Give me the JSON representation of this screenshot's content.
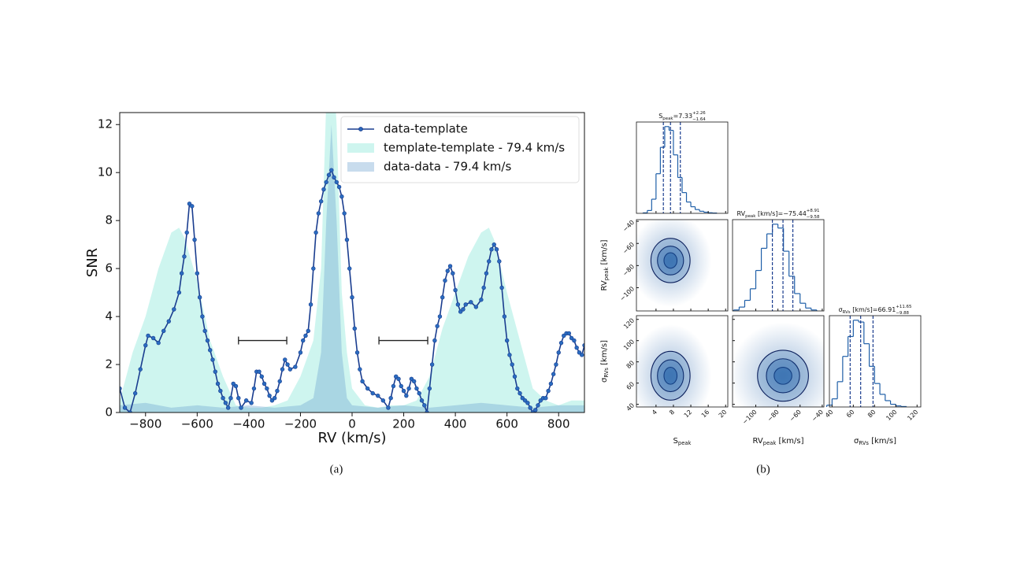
{
  "chart_data": [
    {
      "type": "line",
      "caption": "(a)",
      "xlabel": "RV (km/s)",
      "ylabel": "SNR",
      "xlim": [
        -900,
        900
      ],
      "ylim": [
        0,
        12.5
      ],
      "xticks": [
        {
          "value": -800,
          "label": "−800"
        },
        {
          "value": -600,
          "label": "−600"
        },
        {
          "value": -400,
          "label": "−400"
        },
        {
          "value": -200,
          "label": "−200"
        },
        0,
        200,
        400,
        600,
        800
      ],
      "yticks": [
        0,
        2,
        4,
        6,
        8,
        10,
        12
      ],
      "legend": "upper right",
      "x": [
        -900,
        -880,
        -860,
        -840,
        -820,
        -800,
        -790,
        -770,
        -750,
        -730,
        -710,
        -690,
        -670,
        -660,
        -650,
        -640,
        -630,
        -620,
        -610,
        -600,
        -590,
        -580,
        -570,
        -560,
        -550,
        -540,
        -530,
        -520,
        -510,
        -500,
        -490,
        -480,
        -470,
        -460,
        -450,
        -440,
        -430,
        -410,
        -390,
        -380,
        -370,
        -360,
        -350,
        -340,
        -330,
        -320,
        -310,
        -300,
        -290,
        -280,
        -270,
        -260,
        -250,
        -240,
        -220,
        -200,
        -190,
        -180,
        -170,
        -160,
        -150,
        -140,
        -130,
        -120,
        -110,
        -100,
        -90,
        -80,
        -70,
        -60,
        -50,
        -40,
        -30,
        -20,
        -10,
        0,
        10,
        20,
        30,
        40,
        60,
        80,
        100,
        120,
        140,
        150,
        160,
        170,
        180,
        190,
        200,
        210,
        220,
        230,
        240,
        250,
        260,
        270,
        280,
        290,
        300,
        310,
        320,
        330,
        340,
        350,
        360,
        370,
        380,
        390,
        400,
        410,
        420,
        430,
        440,
        460,
        480,
        500,
        510,
        520,
        530,
        540,
        550,
        560,
        570,
        580,
        590,
        600,
        610,
        620,
        630,
        640,
        650,
        660,
        670,
        680,
        690,
        700,
        710,
        720,
        730,
        740,
        750,
        760,
        770,
        780,
        790,
        800,
        810,
        820,
        830,
        840,
        850,
        860,
        870,
        880,
        890,
        900
      ],
      "series": [
        {
          "name": "data-template",
          "color": "#1a3d8f",
          "values": [
            1.0,
            0.2,
            0.0,
            0.8,
            1.8,
            2.8,
            3.2,
            3.1,
            2.9,
            3.4,
            3.8,
            4.3,
            5.0,
            5.8,
            6.5,
            7.5,
            8.7,
            8.6,
            7.2,
            5.8,
            4.8,
            4.0,
            3.4,
            3.0,
            2.6,
            2.2,
            1.7,
            1.2,
            0.9,
            0.6,
            0.4,
            0.2,
            0.6,
            1.2,
            1.1,
            0.6,
            0.2,
            0.5,
            0.4,
            1.0,
            1.7,
            1.7,
            1.5,
            1.2,
            1.0,
            0.7,
            0.5,
            0.6,
            0.9,
            1.3,
            1.8,
            2.2,
            2.0,
            1.8,
            1.9,
            2.5,
            3.0,
            3.2,
            3.4,
            4.5,
            6.0,
            7.5,
            8.3,
            8.8,
            9.3,
            9.6,
            9.9,
            10.1,
            9.8,
            9.6,
            9.4,
            9.0,
            8.3,
            7.2,
            6.0,
            4.8,
            3.5,
            2.5,
            1.8,
            1.3,
            1.0,
            0.8,
            0.7,
            0.5,
            0.2,
            0.6,
            1.1,
            1.5,
            1.4,
            1.1,
            0.9,
            0.7,
            1.0,
            1.4,
            1.3,
            1.0,
            0.8,
            0.5,
            0.3,
            0.0,
            1.0,
            2.0,
            3.0,
            3.6,
            4.0,
            4.8,
            5.5,
            5.9,
            6.1,
            5.8,
            5.1,
            4.5,
            4.2,
            4.3,
            4.5,
            4.6,
            4.4,
            4.7,
            5.2,
            5.8,
            6.3,
            6.8,
            7.0,
            6.8,
            6.3,
            5.2,
            4.0,
            3.0,
            2.4,
            2.0,
            1.5,
            1.0,
            0.8,
            0.6,
            0.5,
            0.4,
            0.2,
            0.0,
            0.1,
            0.3,
            0.5,
            0.6,
            0.6,
            0.9,
            1.2,
            1.6,
            2.0,
            2.5,
            2.9,
            3.2,
            3.3,
            3.3,
            3.1,
            3.0,
            2.7,
            2.5,
            2.4,
            2.8
          ]
        }
      ],
      "areas": [
        {
          "name": "template-template - 79.4 km/s",
          "color": "#7fe6d4",
          "x": [
            -900,
            -850,
            -800,
            -750,
            -700,
            -670,
            -650,
            -600,
            -550,
            -500,
            -450,
            -400,
            -350,
            -300,
            -250,
            -200,
            -150,
            -120,
            -100,
            -80,
            -60,
            -40,
            -20,
            0,
            50,
            100,
            150,
            200,
            250,
            300,
            350,
            400,
            450,
            500,
            530,
            550,
            600,
            650,
            700,
            750,
            800,
            850,
            900
          ],
          "values": [
            0.5,
            2.5,
            4.0,
            6.0,
            7.5,
            7.7,
            7.3,
            5.5,
            3.0,
            1.5,
            0.3,
            0.2,
            0.2,
            0.3,
            0.5,
            1.5,
            3.0,
            6.0,
            13,
            16,
            12,
            5.0,
            2.5,
            1.0,
            0.3,
            0.2,
            0.3,
            0.3,
            0.5,
            1.5,
            3.5,
            5.0,
            6.5,
            7.5,
            7.7,
            7.2,
            5.0,
            3.0,
            1.0,
            0.5,
            0.3,
            0.5,
            0.5
          ]
        },
        {
          "name": "data-data - 79.4 km/s",
          "color": "#6fa3d0",
          "x": [
            -900,
            -800,
            -700,
            -600,
            -500,
            -400,
            -300,
            -200,
            -150,
            -120,
            -100,
            -80,
            -60,
            -40,
            -20,
            0,
            100,
            200,
            300,
            400,
            500,
            600,
            700,
            800,
            900
          ],
          "values": [
            0.3,
            0.4,
            0.2,
            0.3,
            0.2,
            0.3,
            0.2,
            0.3,
            0.6,
            2.5,
            8.0,
            12.0,
            8.0,
            2.5,
            0.6,
            0.3,
            0.2,
            0.3,
            0.2,
            0.3,
            0.4,
            0.3,
            0.2,
            0.3,
            0.3
          ]
        }
      ],
      "intervals": [
        {
          "x": [
            -440,
            -253
          ],
          "y": 3.0
        },
        {
          "x": [
            104,
            293
          ],
          "y": 3.0
        }
      ]
    },
    {
      "type": "corner",
      "caption": "(b)",
      "color": "#1f5fa8",
      "params": [
        {
          "main": "S",
          "sub": "peak",
          "lim": [
            -0.5,
            20.5
          ],
          "ticks": [
            4,
            8,
            12,
            16,
            20
          ],
          "title": {
            "eq": "=",
            "value": 7.33,
            "plus": "+2.26",
            "minus": "−1.64"
          },
          "quantiles": [
            5.69,
            7.33,
            9.59
          ],
          "bins": [
            1,
            2,
            3,
            4,
            5,
            6,
            7,
            8,
            9,
            10,
            11,
            12,
            13,
            14,
            15,
            16,
            17,
            18
          ],
          "counts": [
            5,
            30,
            150,
            420,
            700,
            920,
            880,
            620,
            380,
            220,
            120,
            70,
            40,
            22,
            12,
            6,
            3
          ]
        },
        {
          "main": "RV",
          "sub": "peak",
          "unit": " [km/s]",
          "lim": [
            -121,
            -38.5
          ],
          "ticks": [
            {
              "value": -100,
              "label": "−100"
            },
            {
              "value": -80,
              "label": "−80"
            },
            {
              "value": -60,
              "label": "−60"
            },
            {
              "value": -40,
              "label": "−40"
            }
          ],
          "title": {
            "eq": "=",
            "value": {
              "value": -75.44,
              "label": "−75.44"
            },
            "plus": "+8.91",
            "minus": "−9.58"
          },
          "quantiles": [
            -85.02,
            -75.44,
            -66.53
          ],
          "bins": [
            -120,
            -115,
            -110,
            -105,
            -100,
            -95,
            -90,
            -85,
            -80,
            -75,
            -70,
            -65,
            -60,
            -55,
            -50,
            -45
          ],
          "counts": [
            10,
            40,
            110,
            230,
            420,
            650,
            800,
            900,
            860,
            620,
            360,
            180,
            80,
            30,
            10
          ]
        },
        {
          "main": "σ",
          "sub": "RVs",
          "unit": " [km/s]",
          "lim": [
            37.5,
            123.5
          ],
          "ticks": [
            40,
            60,
            80,
            100,
            120
          ],
          "title": {
            "eq": "=",
            "value": 66.91,
            "plus": "+11.65",
            "minus": "−9.88"
          },
          "quantiles": [
            57.03,
            66.91,
            78.56
          ],
          "bins": [
            35,
            40,
            45,
            50,
            55,
            60,
            65,
            70,
            75,
            80,
            85,
            90,
            95,
            100,
            105,
            110
          ],
          "counts": [
            20,
            90,
            280,
            560,
            780,
            960,
            940,
            700,
            450,
            260,
            140,
            70,
            30,
            12,
            5
          ]
        }
      ],
      "pairs": [
        {
          "x": 0,
          "y": 1,
          "levels": [
            [
              1.5,
              7
            ],
            [
              3,
              13
            ],
            [
              4.5,
              20
            ]
          ]
        },
        {
          "x": 0,
          "y": 2,
          "levels": [
            [
              1.5,
              8
            ],
            [
              3,
              15
            ],
            [
              4.5,
              23
            ]
          ]
        },
        {
          "x": 1,
          "y": 2,
          "levels": [
            [
              8,
              8
            ],
            [
              15,
              16
            ],
            [
              23,
              24
            ]
          ]
        }
      ]
    }
  ]
}
